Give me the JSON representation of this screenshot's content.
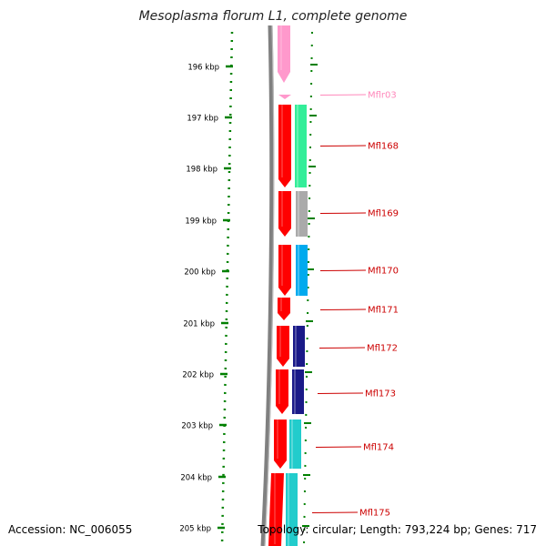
{
  "title": "Mesoplasma florum L1, complete genome",
  "footer": {
    "accession": "Accession: NC_006055",
    "summary": "Topology: circular; Length: 793,224 bp; Genes: 717"
  },
  "ruler": {
    "ticks": [
      "196 kbp",
      "197 kbp",
      "198 kbp",
      "199 kbp",
      "200 kbp",
      "201 kbp",
      "202 kbp",
      "203 kbp",
      "204 kbp",
      "205 kbp"
    ]
  },
  "colors": {
    "backbone": "#808080",
    "gene_red": "#ff0000",
    "trna_pink": "#ff99cc",
    "label_red": "#cc0000",
    "label_pink": "#ff88bb",
    "ruler_green": "#008000",
    "cog_green": "#33ee99",
    "cog_gray": "#aaaaaa",
    "cog_blue": "#00aaee",
    "cog_navy": "#1a1a88",
    "cog_cyan": "#22cccc"
  },
  "features": [
    {
      "label": "Mflr03",
      "type": "trna",
      "cog_color": "#ffffff"
    },
    {
      "label": "Mfl168",
      "type": "cds",
      "cog_color": "#33ee99"
    },
    {
      "label": "Mfl169",
      "type": "cds",
      "cog_color": "#aaaaaa"
    },
    {
      "label": "Mfl170",
      "type": "cds",
      "cog_color": "#00aaee"
    },
    {
      "label": "Mfl171",
      "type": "cds",
      "cog_color": "none"
    },
    {
      "label": "Mfl172",
      "type": "cds",
      "cog_color": "#1a1a88"
    },
    {
      "label": "Mfl173",
      "type": "cds",
      "cog_color": "#1a1a88"
    },
    {
      "label": "Mfl174",
      "type": "cds",
      "cog_color": "#22cccc"
    },
    {
      "label": "Mfl175",
      "type": "cds",
      "cog_color": "#22cccc"
    }
  ]
}
